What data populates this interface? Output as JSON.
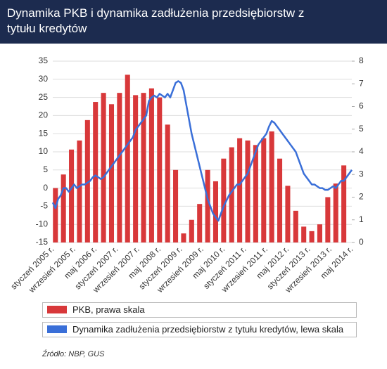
{
  "chart_data": {
    "type": "combo",
    "title": "Dynamika PKB i dynamika zadłużenia przedsiębiorstw z tytułu kredytów",
    "source": "Źródło: NBP, GUS",
    "categories": [
      "styczeń 2005 r.",
      null,
      null,
      null,
      null,
      null,
      null,
      null,
      "wrzesień 2005 r.",
      null,
      null,
      null,
      null,
      null,
      null,
      null,
      "maj 2006 r.",
      null,
      null,
      null,
      null,
      null,
      null,
      null,
      "styczeń 2007 r.",
      null,
      null,
      null,
      null,
      null,
      null,
      null,
      "wrzesień 2007 r.",
      null,
      null,
      null,
      null,
      null,
      null,
      null,
      "maj 2008 r.",
      null,
      null,
      null,
      null,
      null,
      null,
      null,
      "styczeń 2009 r.",
      null,
      null,
      null,
      null,
      null,
      null,
      null,
      "wrzesień 2009 r.",
      null,
      null,
      null,
      null,
      null,
      null,
      null,
      "maj 2010 r.",
      null,
      null,
      null,
      null,
      null,
      null,
      null,
      "styczeń 2011 r.",
      null,
      null,
      null,
      null,
      null,
      null,
      null,
      "wrzesień 2011 r.",
      null,
      null,
      null,
      null,
      null,
      null,
      null,
      "maj 2012 r.",
      null,
      null,
      null,
      null,
      null,
      null,
      null,
      "styczeń 2013 r.",
      null,
      null,
      null,
      null,
      null,
      null,
      null,
      "wrzesień 2013 r.",
      null,
      null,
      null,
      null,
      null,
      null,
      null,
      "maj 2014 r."
    ],
    "series": [
      {
        "name": "PKB, prawa skala",
        "type": "bar",
        "axis": "y2",
        "color": "#d8383a",
        "values": [
          null,
          2.4,
          null,
          null,
          3.0,
          null,
          null,
          4.1,
          null,
          null,
          4.5,
          null,
          null,
          5.4,
          null,
          null,
          6.2,
          null,
          null,
          6.6,
          null,
          null,
          6.1,
          null,
          null,
          6.6,
          null,
          null,
          7.4,
          null,
          null,
          6.5,
          null,
          null,
          6.6,
          null,
          null,
          6.8,
          null,
          null,
          6.4,
          null,
          null,
          5.2,
          null,
          null,
          3.2,
          null,
          null,
          0.4,
          null,
          null,
          1.0,
          null,
          null,
          1.7,
          null,
          null,
          3.2,
          null,
          null,
          2.7,
          null,
          null,
          3.7,
          null,
          null,
          4.2,
          null,
          null,
          4.6,
          null,
          null,
          4.5,
          null,
          null,
          4.3,
          null,
          null,
          4.6,
          null,
          null,
          4.9,
          null,
          null,
          3.7,
          null,
          null,
          2.5,
          null,
          null,
          1.4,
          null,
          null,
          0.7,
          null,
          null,
          0.5,
          null,
          null,
          0.8,
          null,
          null,
          2.0,
          null,
          null,
          2.6,
          null,
          null,
          3.4,
          null,
          null,
          null
        ]
      },
      {
        "name": "Dynamika zadłużenia przedsiębiorstw z tytułu kredytów, lewa skala",
        "type": "line",
        "color": "#3a6fd8",
        "values": [
          -4,
          -5.5,
          -3,
          -2,
          0,
          0,
          -1,
          0,
          1,
          0,
          0.5,
          1,
          1,
          1.5,
          2,
          3,
          3.5,
          3,
          2.5,
          3,
          4,
          5,
          6,
          7,
          8,
          9,
          10,
          11,
          12,
          13,
          14,
          16,
          17,
          18,
          19,
          20,
          24,
          25,
          25.5,
          25,
          26,
          25.5,
          25,
          26,
          25,
          27,
          29,
          29.5,
          29,
          27,
          23,
          19,
          15,
          12,
          9,
          6,
          3,
          0,
          -3,
          -5,
          -7,
          -8,
          -9,
          -7,
          -5,
          -3.5,
          -2,
          -1,
          0,
          1,
          1,
          2,
          3,
          4,
          6,
          8,
          10,
          12,
          13,
          14,
          15,
          17,
          18.5,
          18,
          17,
          16,
          15,
          14,
          13,
          12,
          11,
          10,
          8,
          6,
          4,
          3,
          2,
          1,
          1,
          0.5,
          0,
          0,
          -0.5,
          -0.5,
          0,
          0.5,
          0,
          1,
          2,
          2,
          3,
          4,
          5
        ]
      }
    ],
    "ylim": [
      -15,
      35
    ],
    "yticks": [
      -15,
      -10,
      -5,
      0,
      5,
      10,
      15,
      20,
      25,
      30,
      35
    ],
    "y2lim": [
      0,
      8
    ],
    "y2ticks": [
      0,
      1,
      2,
      3,
      4,
      5,
      6,
      7,
      8
    ],
    "grid": true
  }
}
